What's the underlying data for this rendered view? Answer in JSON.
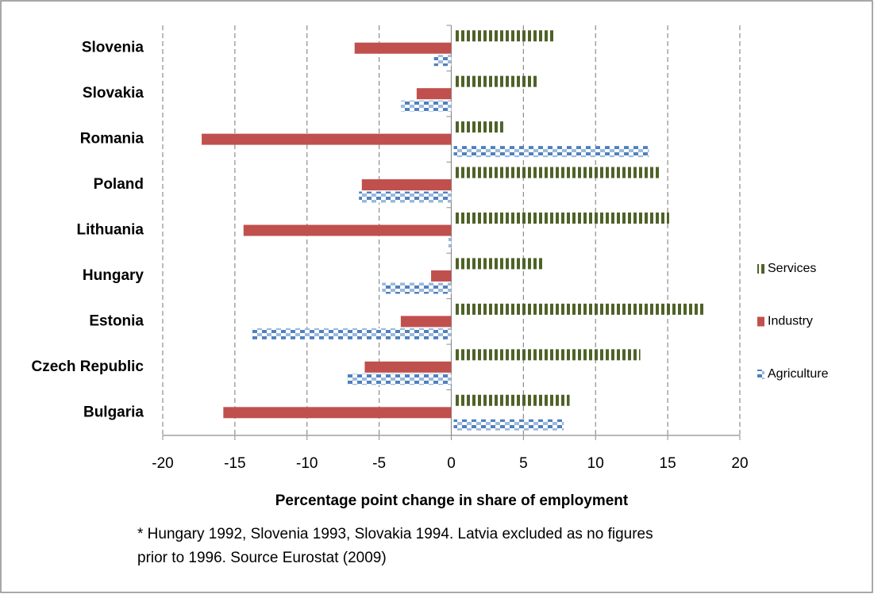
{
  "chart_data": {
    "type": "barh",
    "categories": [
      "Bulgaria",
      "Czech Republic",
      "Estonia",
      "Hungary",
      "Lithuania",
      "Poland",
      "Romania",
      "Slovakia",
      "Slovenia"
    ],
    "series": [
      {
        "name": "Agriculture",
        "color": "#4f81bd",
        "pattern": "checker",
        "values": [
          7.8,
          -7.2,
          -13.8,
          -4.8,
          -0.2,
          -6.4,
          13.7,
          -3.5,
          -1.2
        ]
      },
      {
        "name": "Industry",
        "color": "#c0504d",
        "pattern": "solid",
        "values": [
          -15.8,
          -6.0,
          -3.5,
          -1.4,
          -14.4,
          -6.2,
          -17.3,
          -2.4,
          -6.7
        ]
      },
      {
        "name": "Services",
        "color": "#4f6228",
        "pattern": "stripes",
        "values": [
          8.2,
          13.1,
          17.5,
          6.3,
          15.1,
          14.5,
          3.6,
          6.0,
          7.2
        ]
      }
    ],
    "xlim": [
      -20,
      20
    ],
    "xticks": [
      -20,
      -15,
      -10,
      -5,
      0,
      5,
      10,
      15,
      20
    ],
    "xlabel": "Percentage point change in share of employment",
    "grid": true,
    "legend": "right",
    "note": [
      "* Hungary 1992, Slovenia 1993, Slovakia 1994.  Latvia excluded as no figures",
      "prior to 1996.  Source Eurostat (2009)"
    ]
  }
}
